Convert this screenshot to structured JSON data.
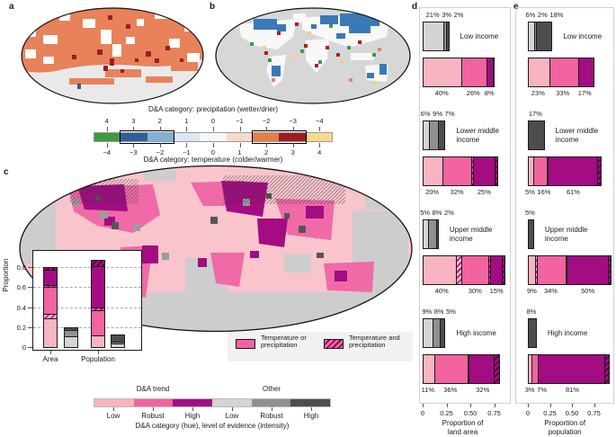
{
  "colors": {
    "light_pink": "#f8b4c0",
    "medium_pink": "#f2639f",
    "dark_magenta": "#a30c82",
    "light_gray": "#d4d4d4",
    "medium_gray": "#909090",
    "dark_gray": "#4d4d4d"
  },
  "panel_labels": {
    "a": "a",
    "b": "b",
    "c": "c",
    "d": "d",
    "e": "e"
  },
  "colorbar": {
    "top_title": "D&A category: precipitation (wetter/drier)",
    "bottom_title": "D&A category: temperature (colder/warmer)",
    "top_ticks": [
      "4",
      "3",
      "2",
      "1",
      "0",
      "−1",
      "−2",
      "−3",
      "−4"
    ],
    "bottom_ticks": [
      "−4",
      "−3",
      "−2",
      "−1",
      "0",
      "1",
      "2",
      "3",
      "4"
    ],
    "colors": [
      "#3f9a40",
      "#2d5f99",
      "#7db3d6",
      "#dbe8f2",
      "#f7f7f7",
      "#f8dbca",
      "#e37f47",
      "#9e1c22",
      "#f6da8d"
    ]
  },
  "map_c": {
    "legend": [
      {
        "line1": "Temperature or",
        "line2": "precipitation",
        "swatch": "plain"
      },
      {
        "line1": "Temperature and",
        "line2": "precipitation",
        "swatch": "hatched"
      }
    ]
  },
  "hue_legend": {
    "groups": [
      {
        "label": "D&A trend"
      },
      {
        "label": "Other"
      }
    ],
    "cells": [
      {
        "color": "#f8b4c0",
        "label": "Low"
      },
      {
        "color": "#f2639f",
        "label": "Robust"
      },
      {
        "color": "#a30c82",
        "label": "High"
      },
      {
        "color": "#d4d4d4",
        "label": "Low"
      },
      {
        "color": "#909090",
        "label": "Robust"
      },
      {
        "color": "#4d4d4d",
        "label": "High"
      }
    ],
    "caption": "D&A category (hue), level of evidence (intensity)"
  },
  "chart_data": [
    {
      "id": "c_inset",
      "type": "bar",
      "orientation": "vertical-stacked",
      "ylabel": "Proportion",
      "ylim": [
        0,
        0.9
      ],
      "yticks": [
        "0",
        "0.2",
        "0.4",
        "0.6",
        "0.8"
      ],
      "grid": "dashed-horizontal",
      "categories": [
        "Area",
        "Population"
      ],
      "bars": [
        {
          "category": "Area",
          "series": "D&A trend",
          "total": 0.8,
          "segments": [
            {
              "style": "light",
              "value": 0.28
            },
            {
              "style": "light-h",
              "value": 0.05
            },
            {
              "style": "medium",
              "value": 0.27
            },
            {
              "style": "medium-h",
              "value": 0.02
            },
            {
              "style": "dark",
              "value": 0.15
            },
            {
              "style": "dark-h",
              "value": 0.03
            }
          ]
        },
        {
          "category": "Area",
          "series": "Other",
          "total": 0.2,
          "segments": [
            {
              "style": "gray-light",
              "value": 0.1
            },
            {
              "style": "gray-medium",
              "value": 0.07
            },
            {
              "style": "gray-dark",
              "value": 0.03
            }
          ]
        },
        {
          "category": "Population",
          "series": "D&A trend",
          "total": 0.87,
          "segments": [
            {
              "style": "light",
              "value": 0.11
            },
            {
              "style": "medium",
              "value": 0.25
            },
            {
              "style": "medium-h",
              "value": 0.03
            },
            {
              "style": "dark",
              "value": 0.42
            },
            {
              "style": "dark-h",
              "value": 0.06
            }
          ]
        },
        {
          "category": "Population",
          "series": "Other",
          "total": 0.13,
          "segments": [
            {
              "style": "gray-light",
              "value": 0.03
            },
            {
              "style": "gray-medium",
              "value": 0.02
            },
            {
              "style": "gray-dark",
              "value": 0.08
            }
          ]
        }
      ]
    },
    {
      "id": "d",
      "type": "bar",
      "orientation": "horizontal-stacked",
      "xlabel_line1": "Proportion of",
      "xlabel_line2": "land area",
      "xticks": [
        "0",
        "0.25",
        "0.50",
        "0.75"
      ],
      "xlim": [
        0,
        1
      ],
      "groups": [
        {
          "label": "Low income",
          "other": {
            "labels": [
              "21%",
              "3%",
              "2%"
            ],
            "segments": [
              {
                "style": "gray-light",
                "value": 21
              },
              {
                "style": "gray-medium",
                "value": 3
              },
              {
                "style": "gray-dark",
                "value": 2
              }
            ]
          },
          "trend": {
            "labels": [
              "40%",
              "26%",
              "8%"
            ],
            "segments": [
              {
                "style": "light",
                "value": 40
              },
              {
                "style": "medium",
                "value": 26
              },
              {
                "style": "dark",
                "value": 7
              },
              {
                "style": "dark-h",
                "value": 1
              }
            ]
          }
        },
        {
          "label": "Lower middle income",
          "other": {
            "labels": [
              "6%",
              "9%",
              "7%"
            ],
            "segments": [
              {
                "style": "gray-light",
                "value": 6
              },
              {
                "style": "gray-medium",
                "value": 9
              },
              {
                "style": "gray-dark",
                "value": 7
              }
            ]
          },
          "trend": {
            "labels": [
              "20%",
              "32%",
              "25%"
            ],
            "segments": [
              {
                "style": "light",
                "value": 20
              },
              {
                "style": "medium",
                "value": 30
              },
              {
                "style": "medium-h",
                "value": 2
              },
              {
                "style": "dark",
                "value": 23
              },
              {
                "style": "dark-h",
                "value": 2
              }
            ]
          }
        },
        {
          "label": "Upper middle income",
          "other": {
            "labels": [
              "5%",
              "8%",
              "2%"
            ],
            "segments": [
              {
                "style": "gray-light",
                "value": 5
              },
              {
                "style": "gray-medium",
                "value": 8
              },
              {
                "style": "gray-dark",
                "value": 2
              }
            ]
          },
          "trend": {
            "labels": [
              "40%",
              "30%",
              "15%"
            ],
            "segments": [
              {
                "style": "light",
                "value": 34
              },
              {
                "style": "light-h",
                "value": 6
              },
              {
                "style": "medium",
                "value": 28
              },
              {
                "style": "medium-h",
                "value": 2
              },
              {
                "style": "dark",
                "value": 12
              },
              {
                "style": "dark-h",
                "value": 3
              }
            ]
          }
        },
        {
          "label": "High income",
          "other": {
            "labels": [
              "9%",
              "8%",
              "5%"
            ],
            "segments": [
              {
                "style": "gray-light",
                "value": 9
              },
              {
                "style": "gray-medium",
                "value": 8
              },
              {
                "style": "gray-dark",
                "value": 5
              }
            ]
          },
          "trend": {
            "labels": [
              "11%",
              "36%",
              "32%"
            ],
            "segments": [
              {
                "style": "light",
                "value": 11
              },
              {
                "style": "medium",
                "value": 35
              },
              {
                "style": "medium-h",
                "value": 1
              },
              {
                "style": "dark",
                "value": 27
              },
              {
                "style": "dark-h",
                "value": 5
              }
            ]
          }
        }
      ]
    },
    {
      "id": "e",
      "type": "bar",
      "orientation": "horizontal-stacked",
      "xlabel_line1": "Proportion of",
      "xlabel_line2": "population",
      "xticks": [
        "0",
        "0.25",
        "0.50",
        "0.75"
      ],
      "xlim": [
        0,
        1
      ],
      "groups": [
        {
          "label": "Low income",
          "other": {
            "labels": [
              "6%",
              "2%",
              "18%"
            ],
            "segments": [
              {
                "style": "gray-light",
                "value": 6
              },
              {
                "style": "gray-medium",
                "value": 2
              },
              {
                "style": "gray-dark",
                "value": 18
              }
            ]
          },
          "trend": {
            "labels": [
              "23%",
              "33%",
              "17%"
            ],
            "segments": [
              {
                "style": "light",
                "value": 23
              },
              {
                "style": "medium",
                "value": 33
              },
              {
                "style": "dark",
                "value": 17
              }
            ]
          }
        },
        {
          "label": "Lower middle income",
          "other": {
            "labels": [
              "17%"
            ],
            "segments": [
              {
                "style": "gray-dark",
                "value": 17
              }
            ]
          },
          "trend": {
            "labels": [
              "5%",
              "16%",
              "61%"
            ],
            "segments": [
              {
                "style": "light",
                "value": 5
              },
              {
                "style": "medium",
                "value": 15
              },
              {
                "style": "medium-h",
                "value": 1
              },
              {
                "style": "dark",
                "value": 57
              },
              {
                "style": "dark-h",
                "value": 4
              }
            ]
          }
        },
        {
          "label": "Upper middle income",
          "other": {
            "labels": [
              "5%"
            ],
            "segments": [
              {
                "style": "gray-dark",
                "value": 5
              }
            ]
          },
          "trend": {
            "labels": [
              "9%",
              "34%",
              "50%"
            ],
            "segments": [
              {
                "style": "light",
                "value": 7
              },
              {
                "style": "light-h",
                "value": 2
              },
              {
                "style": "medium",
                "value": 33
              },
              {
                "style": "medium-h",
                "value": 1
              },
              {
                "style": "dark",
                "value": 47
              },
              {
                "style": "dark-h",
                "value": 3
              }
            ]
          }
        },
        {
          "label": "High income",
          "other": {
            "labels": [
              "8%"
            ],
            "segments": [
              {
                "style": "gray-dark",
                "value": 8
              }
            ]
          },
          "trend": {
            "labels": [
              "3%",
              "7%",
              "81%"
            ],
            "segments": [
              {
                "style": "light",
                "value": 3
              },
              {
                "style": "medium",
                "value": 7
              },
              {
                "style": "dark",
                "value": 76
              },
              {
                "style": "dark-h",
                "value": 5
              }
            ]
          }
        }
      ]
    }
  ]
}
